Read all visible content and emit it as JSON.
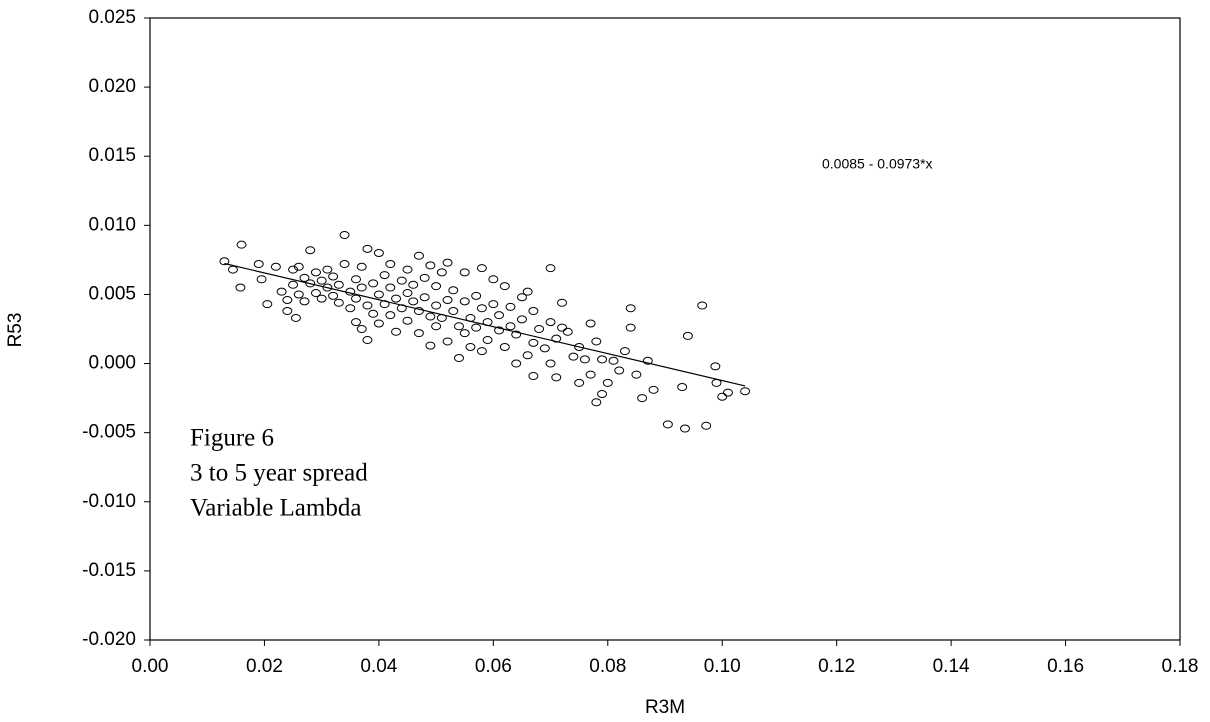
{
  "chart_data": {
    "type": "scatter",
    "x_label": "R3M",
    "y_label": "R53",
    "annotation": "0.0085 - 0.0973*x",
    "figure_label": [
      "Figure 6",
      "3 to 5 year spread",
      "Variable Lambda"
    ],
    "xlim": [
      0,
      0.18
    ],
    "xticks": [
      {
        "value": 0,
        "label": "0.00"
      },
      0.02,
      0.04,
      0.06,
      0.08,
      {
        "value": 0.1,
        "label": "0.10"
      },
      0.12,
      0.14,
      0.16,
      0.18
    ],
    "ylim": [
      -0.02,
      0.025
    ],
    "yticks": [
      {
        "value": -0.02,
        "label": "-0.020"
      },
      {
        "value": -0.015,
        "label": "-0.015"
      },
      {
        "value": -0.01,
        "label": "-0.010"
      },
      -0.005,
      {
        "value": 0,
        "label": "0.000"
      },
      {
        "value": 0.005,
        "label": "0.005"
      },
      {
        "value": 0.01,
        "label": "0.010"
      },
      0.015,
      {
        "value": 0.02,
        "label": "0.020"
      },
      0.025
    ],
    "color": "#000000",
    "x": [
      0.013,
      0.0145,
      0.016,
      0.0158,
      0.019,
      0.0195,
      0.0205,
      0.022,
      0.023,
      0.024,
      0.024,
      0.025,
      0.025,
      0.0255,
      0.026,
      0.026,
      0.027,
      0.027,
      0.028,
      0.028,
      0.029,
      0.029,
      0.03,
      0.03,
      0.031,
      0.031,
      0.032,
      0.032,
      0.033,
      0.033,
      0.034,
      0.034,
      0.035,
      0.035,
      0.036,
      0.036,
      0.036,
      0.037,
      0.037,
      0.037,
      0.038,
      0.038,
      0.038,
      0.039,
      0.039,
      0.04,
      0.04,
      0.04,
      0.041,
      0.041,
      0.042,
      0.042,
      0.042,
      0.043,
      0.043,
      0.044,
      0.044,
      0.045,
      0.045,
      0.045,
      0.046,
      0.046,
      0.047,
      0.047,
      0.047,
      0.048,
      0.048,
      0.049,
      0.049,
      0.049,
      0.05,
      0.05,
      0.05,
      0.051,
      0.051,
      0.052,
      0.052,
      0.052,
      0.053,
      0.053,
      0.054,
      0.054,
      0.055,
      0.055,
      0.055,
      0.056,
      0.056,
      0.057,
      0.057,
      0.058,
      0.058,
      0.058,
      0.059,
      0.059,
      0.06,
      0.06,
      0.061,
      0.061,
      0.062,
      0.062,
      0.063,
      0.063,
      0.064,
      0.064,
      0.065,
      0.065,
      0.066,
      0.066,
      0.067,
      0.067,
      0.067,
      0.068,
      0.069,
      0.07,
      0.07,
      0.07,
      0.071,
      0.071,
      0.072,
      0.072,
      0.073,
      0.074,
      0.075,
      0.075,
      0.076,
      0.077,
      0.077,
      0.078,
      0.078,
      0.079,
      0.079,
      0.08,
      0.081,
      0.082,
      0.083,
      0.084,
      0.084,
      0.085,
      0.086,
      0.087,
      0.088,
      0.0905,
      0.093,
      0.0935,
      0.094,
      0.0965,
      0.0972,
      0.0988,
      0.099,
      0.1,
      0.101,
      0.104
    ],
    "values": [
      0.0074,
      0.0068,
      0.0086,
      0.0055,
      0.0072,
      0.0061,
      0.0043,
      0.007,
      0.0052,
      0.0046,
      0.0038,
      0.0068,
      0.0057,
      0.0033,
      0.005,
      0.007,
      0.0062,
      0.0045,
      0.0082,
      0.0058,
      0.0051,
      0.0066,
      0.0047,
      0.006,
      0.0055,
      0.0068,
      0.0063,
      0.0049,
      0.0057,
      0.0044,
      0.0093,
      0.0072,
      0.0052,
      0.004,
      0.0061,
      0.0047,
      0.003,
      0.007,
      0.0055,
      0.0025,
      0.0083,
      0.0042,
      0.0017,
      0.0058,
      0.0036,
      0.008,
      0.005,
      0.0029,
      0.0064,
      0.0043,
      0.0072,
      0.0055,
      0.0035,
      0.0047,
      0.0023,
      0.006,
      0.004,
      0.0068,
      0.0051,
      0.0031,
      0.0045,
      0.0057,
      0.0078,
      0.0038,
      0.0022,
      0.0062,
      0.0048,
      0.0071,
      0.0034,
      0.0013,
      0.0056,
      0.0042,
      0.0027,
      0.0066,
      0.0033,
      0.0073,
      0.0046,
      0.0016,
      0.0053,
      0.0038,
      0.0027,
      0.0004,
      0.0066,
      0.0045,
      0.0022,
      0.0033,
      0.0012,
      0.0049,
      0.0026,
      0.0069,
      0.004,
      0.0009,
      0.003,
      0.0017,
      0.0061,
      0.0043,
      0.0024,
      0.0035,
      0.0056,
      0.0012,
      0.0041,
      0.0027,
      0.0021,
      0,
      0.0048,
      0.0032,
      0.0052,
      0.0006,
      0.0038,
      0.0015,
      -0.0009,
      0.0025,
      0.0011,
      0.0069,
      0.003,
      0,
      0.0018,
      -0.001,
      0.0044,
      0.0026,
      0.0023,
      0.0005,
      0.0012,
      -0.0014,
      0.0003,
      0.0029,
      -0.0008,
      0.0016,
      -0.0028,
      0.0003,
      -0.0022,
      -0.0014,
      0.0002,
      -0.0005,
      0.0009,
      0.004,
      0.0026,
      -0.0008,
      -0.0025,
      0.0002,
      -0.0019,
      -0.0044,
      -0.0017,
      -0.0047,
      0.002,
      0.0042,
      -0.0045,
      -0.0002,
      -0.0014,
      -0.0024,
      -0.0021,
      -0.002
    ],
    "trendline": {
      "x": [
        0.013,
        0.104
      ],
      "values": [
        0.00724,
        -0.00162
      ]
    }
  }
}
